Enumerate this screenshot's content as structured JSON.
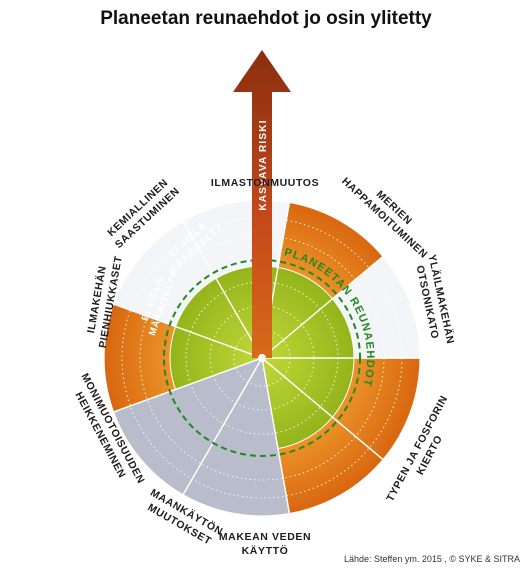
{
  "title": "Planeetan reunaehdot jo osin ylitetty",
  "source": "Lähde: Steffen ym. 2015 , © SYKE & SITRA",
  "arrow_label": "KASVAVA RISKI",
  "boundary_label": "PLANEETAN REUNAEHDOT",
  "not_defined_label": [
    "EI VIELÄ",
    "MÄÄRITELTY"
  ],
  "sectors": [
    {
      "id": "climate",
      "lines": [
        "ILMASTONMUUTOS"
      ],
      "status": "exceeded",
      "color": "#e07a18"
    },
    {
      "id": "ocean",
      "lines": [
        "MERIEN",
        "HAPPAMOITUMINEN"
      ],
      "status": "safe",
      "color": "#ffffff"
    },
    {
      "id": "ozone",
      "lines": [
        "YLÄILMAKEHÄN",
        "OTSONIKATO"
      ],
      "status": "safe",
      "color": "#ffffff"
    },
    {
      "id": "nitrogen",
      "lines": [
        "TYPEN JA FOSFORIN",
        "KIERTO"
      ],
      "status": "exceeded",
      "color": "#e07a18"
    },
    {
      "id": "water",
      "lines": [
        "MAKEAN VEDEN",
        "KÄYTTÖ"
      ],
      "status": "safe",
      "color": "#ffffff"
    },
    {
      "id": "land",
      "lines": [
        "MAANKÄYTÖN",
        "MUUTOKSET"
      ],
      "status": "exceeded",
      "color": "#e07a18"
    },
    {
      "id": "biodiversity",
      "lines": [
        "MONIMUOTOISUUDEN",
        "HEIKKENEMINEN"
      ],
      "status": "exceeded",
      "color": "#e07a18"
    },
    {
      "id": "aerosols",
      "lines": [
        "ILMAKEHÄN",
        "PIENHIUKKASET"
      ],
      "status": "not-defined",
      "color": "#b8bccb"
    },
    {
      "id": "chemicals",
      "lines": [
        "KEMIALLINEN",
        "SAASTUMINEN"
      ],
      "status": "not-defined",
      "color": "#b8bccb"
    }
  ],
  "colors": {
    "exceeded": "#e07a18",
    "safe_zone": "#9fc21f",
    "not_defined": "#b8bccb",
    "boundary": "#1f8a1f",
    "arrow": "#c0481c"
  }
}
